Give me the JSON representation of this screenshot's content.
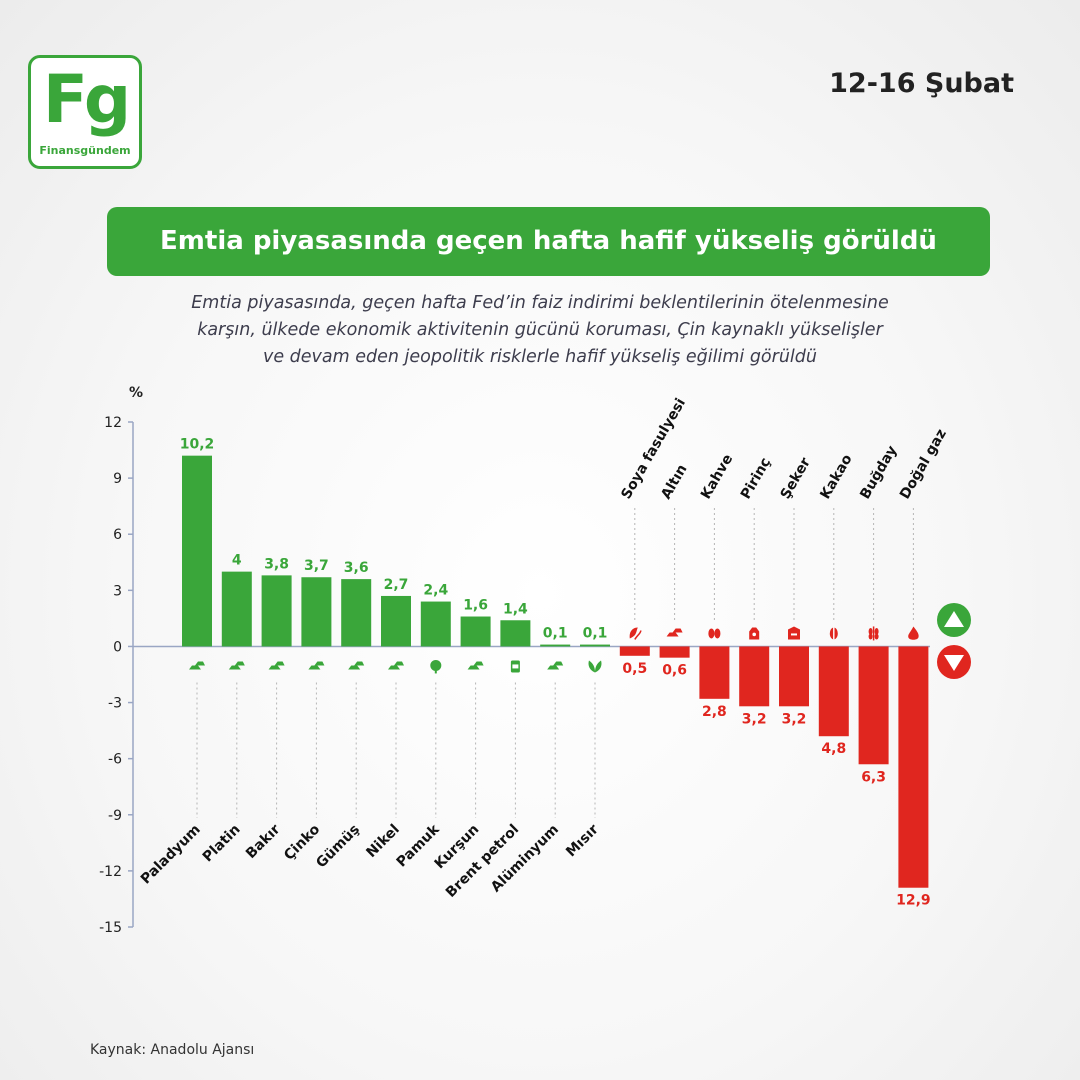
{
  "header": {
    "logo_mark": "Fg",
    "logo_name": "Finansgündem",
    "date": "12-16 Şubat",
    "banner_title": "Emtia piyasasında geçen hafta hafif yükseliş görüldü",
    "subtitle_lines": [
      "Emtia piyasasında, geçen hafta Fed’in faiz indirimi beklentilerinin ötelenmesine",
      "karşın, ülkede ekonomik aktivitenin gücünü koruması, Çin kaynaklı yükselişler",
      "ve devam eden jeopolitik risklerle hafif yükseliş eğilimi görüldü"
    ]
  },
  "footer": {
    "source": "Kaynak: Anadolu Ajansı"
  },
  "colors": {
    "positive": "#3aa63a",
    "negative": "#e0261f",
    "axis": "#9aa6c4"
  },
  "chart_data": {
    "type": "bar",
    "ylabel": "%",
    "ylim": [
      -15,
      12
    ],
    "yticks": [
      12,
      9,
      6,
      3,
      0,
      -3,
      -6,
      -9,
      -12,
      -15
    ],
    "legend": [
      "up-arrow-icon",
      "down-arrow-icon"
    ],
    "categories": [
      "Paladyum",
      "Platin",
      "Bakır",
      "Çinko",
      "Gümüş",
      "Nikel",
      "Pamuk",
      "Kurşun",
      "Brent petrol",
      "Alüminyum",
      "Mısır",
      "Soya fasulyesi",
      "Altın",
      "Kahve",
      "Pirinç",
      "Şeker",
      "Kakao",
      "Buğday",
      "Doğal gaz"
    ],
    "values": [
      10.2,
      4,
      3.8,
      3.7,
      3.6,
      2.7,
      2.4,
      1.6,
      1.4,
      0.1,
      0.1,
      -0.5,
      -0.6,
      -2.8,
      -3.2,
      -3.2,
      -4.8,
      -6.3,
      -12.9
    ],
    "value_labels": [
      "10,2",
      "4",
      "3,8",
      "3,7",
      "3,6",
      "2,7",
      "2,4",
      "1,6",
      "1,4",
      "0,1",
      "0,1",
      "0,5",
      "0,6",
      "2,8",
      "3,2",
      "3,2",
      "4,8",
      "6,3",
      "12,9"
    ],
    "icons": [
      "metal-bars-icon",
      "metal-bars-icon",
      "metal-bars-icon",
      "metal-bars-icon",
      "metal-bars-icon",
      "metal-bars-icon",
      "cotton-icon",
      "metal-bars-icon",
      "oil-barrel-icon",
      "metal-bars-icon",
      "corn-sprout-icon",
      "soybean-icon",
      "gold-bars-icon",
      "coffee-beans-icon",
      "rice-sack-icon",
      "sugar-box-icon",
      "cocoa-icon",
      "wheat-icon",
      "flame-icon"
    ]
  }
}
